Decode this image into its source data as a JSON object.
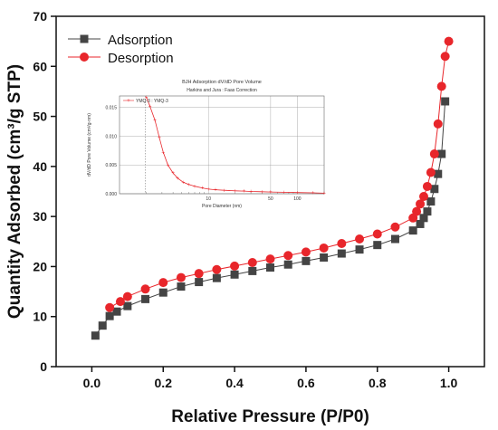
{
  "chart_data": [
    {
      "type": "scatter",
      "title": "",
      "xlabel": "Relative Pressure (P/P0)",
      "ylabel": "Quantity Adsorbed (cm³/g STP)",
      "xlim": [
        -0.1,
        1.1
      ],
      "ylim": [
        0,
        70
      ],
      "x_ticks": [
        0.0,
        0.2,
        0.4,
        0.6,
        0.8,
        1.0
      ],
      "x_tick_labels": [
        "0.0",
        "0.2",
        "0.4",
        "0.6",
        "0.8",
        "1.0"
      ],
      "y_ticks": [
        0,
        10,
        20,
        30,
        40,
        50,
        60,
        70
      ],
      "y_tick_labels": [
        "0",
        "10",
        "20",
        "30",
        "40",
        "50",
        "60",
        "70"
      ],
      "grid": false,
      "legend_position": "top-left",
      "series": [
        {
          "name": "Adsorption",
          "color": "#444444",
          "marker": "square",
          "x": [
            0.01,
            0.03,
            0.05,
            0.07,
            0.1,
            0.15,
            0.2,
            0.25,
            0.3,
            0.35,
            0.4,
            0.45,
            0.5,
            0.55,
            0.6,
            0.65,
            0.7,
            0.75,
            0.8,
            0.85,
            0.9,
            0.92,
            0.93,
            0.94,
            0.95,
            0.96,
            0.97,
            0.98,
            0.99
          ],
          "y": [
            6.2,
            8.2,
            10.1,
            11.0,
            12.1,
            13.5,
            14.8,
            16.0,
            16.9,
            17.7,
            18.4,
            19.1,
            19.8,
            20.4,
            21.1,
            21.8,
            22.6,
            23.4,
            24.3,
            25.5,
            27.2,
            28.5,
            29.7,
            31.0,
            33.0,
            35.5,
            38.5,
            42.5,
            53.0
          ]
        },
        {
          "name": "Desorption",
          "color": "#e8262b",
          "marker": "circle",
          "x": [
            0.05,
            0.08,
            0.1,
            0.15,
            0.2,
            0.25,
            0.3,
            0.35,
            0.4,
            0.45,
            0.5,
            0.55,
            0.6,
            0.65,
            0.7,
            0.75,
            0.8,
            0.85,
            0.9,
            0.91,
            0.92,
            0.93,
            0.94,
            0.95,
            0.96,
            0.97,
            0.98,
            0.99,
            1.0
          ],
          "y": [
            11.8,
            13.0,
            14.0,
            15.5,
            16.8,
            17.8,
            18.6,
            19.4,
            20.1,
            20.8,
            21.5,
            22.2,
            22.9,
            23.7,
            24.6,
            25.5,
            26.5,
            27.9,
            29.7,
            31.0,
            32.5,
            34.0,
            36.0,
            38.8,
            42.5,
            48.5,
            56.0,
            62.0,
            65.0
          ]
        }
      ]
    },
    {
      "type": "line",
      "title": "BJH Adsorption dV/dD Pore Volume",
      "subtitle": "Harkins and Jura : Faas Correction",
      "xlabel": "Pore Diameter (nm)",
      "ylabel": "dV/dD Pore Volume (cm³/g·nm)",
      "xscale": "log",
      "xlim": [
        1,
        200
      ],
      "ylim": [
        0,
        0.017
      ],
      "x_tick_labels": [
        "10",
        "50",
        "100"
      ],
      "y_tick_labels": [
        "0.000",
        "0.005",
        "0.010",
        "0.015"
      ],
      "grid": true,
      "legend_position": "top-left",
      "series": [
        {
          "name": "YMQ-3 : YMQ-3",
          "color": "#e8262b",
          "x": [
            2.0,
            2.2,
            2.5,
            2.8,
            3.1,
            3.5,
            4.0,
            4.5,
            5.2,
            6.0,
            7.0,
            8.5,
            10,
            12,
            15,
            20,
            25,
            30,
            40,
            50,
            70,
            100,
            150,
            200
          ],
          "y": [
            0.0168,
            0.0152,
            0.0128,
            0.0098,
            0.0072,
            0.005,
            0.0036,
            0.0027,
            0.002,
            0.0016,
            0.0013,
            0.001,
            0.0008,
            0.0007,
            0.0006,
            0.0005,
            0.00045,
            0.0004,
            0.00035,
            0.0003,
            0.00025,
            0.0002,
            0.00015,
            0.0001
          ]
        }
      ]
    }
  ]
}
